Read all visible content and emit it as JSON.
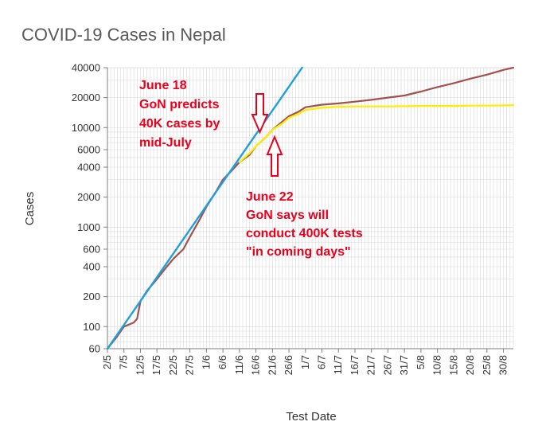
{
  "chart_data": {
    "type": "line",
    "title": "COVID-19 Cases in Nepal",
    "xlabel": "Test Date",
    "ylabel": "Cases",
    "yscale": "log",
    "ylim": [
      60,
      40000
    ],
    "yticks": [
      60,
      100,
      200,
      400,
      600,
      1000,
      2000,
      4000,
      6000,
      10000,
      20000,
      40000
    ],
    "ytick_labels": [
      "60",
      "100",
      "200",
      "400",
      "600",
      "1000",
      "2000",
      "4000",
      "6000",
      "10000",
      "20000",
      "40000"
    ],
    "xticks": [
      "2/5",
      "7/5",
      "12/5",
      "17/5",
      "22/5",
      "27/5",
      "1/6",
      "6/6",
      "11/6",
      "16/6",
      "21/6",
      "26/6",
      "1/7",
      "6/7",
      "11/7",
      "16/7",
      "21/7",
      "26/7",
      "31/7",
      "5/8",
      "10/8",
      "15/8",
      "20/8",
      "25/8",
      "30/8"
    ],
    "grid": true,
    "legend": "none",
    "series": [
      {
        "color": "#a0524f",
        "x": [
          "2/5",
          "5/5",
          "7/5",
          "10/5",
          "11/5",
          "12/5",
          "14/5",
          "17/5",
          "20/5",
          "22/5",
          "25/5",
          "27/5",
          "30/5",
          "1/6",
          "4/6",
          "6/6",
          "9/6",
          "11/6",
          "14/6",
          "16/6",
          "19/6",
          "21/6",
          "24/6",
          "26/6",
          "29/6",
          "1/7",
          "6/7",
          "11/7",
          "16/7",
          "21/7",
          "26/7",
          "31/7",
          "5/8",
          "10/8",
          "15/8",
          "20/8",
          "25/8",
          "30/8",
          "2/9"
        ],
        "values": [
          60,
          80,
          100,
          110,
          120,
          180,
          230,
          300,
          400,
          480,
          600,
          800,
          1200,
          1600,
          2300,
          3000,
          3800,
          4500,
          5300,
          6500,
          8000,
          9500,
          11500,
          13000,
          14500,
          16000,
          17000,
          17500,
          18200,
          19000,
          20000,
          21000,
          23000,
          25500,
          28000,
          31000,
          34000,
          38000,
          40000
        ]
      },
      {
        "color": "#ffee00",
        "x": [
          "11/6",
          "14/6",
          "16/6",
          "19/6",
          "21/6",
          "24/6",
          "26/6",
          "29/6",
          "1/7",
          "6/7",
          "11/7",
          "16/7",
          "21/7",
          "26/7",
          "31/7",
          "5/8",
          "10/8",
          "15/8",
          "20/8",
          "25/8",
          "30/8",
          "2/9"
        ],
        "values": [
          4500,
          5500,
          6500,
          8000,
          9500,
          11000,
          12500,
          13800,
          15000,
          15800,
          16200,
          16300,
          16300,
          16300,
          16400,
          16500,
          16500,
          16500,
          16600,
          16600,
          16700,
          16800
        ]
      },
      {
        "color": "#1f9fdc",
        "x": [
          "2/5",
          "30/6"
        ],
        "values": [
          60,
          40000
        ]
      }
    ],
    "annotations": [
      {
        "lines": [
          "June 18",
          "GoN predicts",
          "40K cases by",
          "mid-July"
        ],
        "color": "#e8001c"
      },
      {
        "lines": [
          "June 22",
          "GoN says will",
          "conduct 400K tests",
          "\"in coming days\""
        ],
        "color": "#e8001c"
      }
    ]
  }
}
